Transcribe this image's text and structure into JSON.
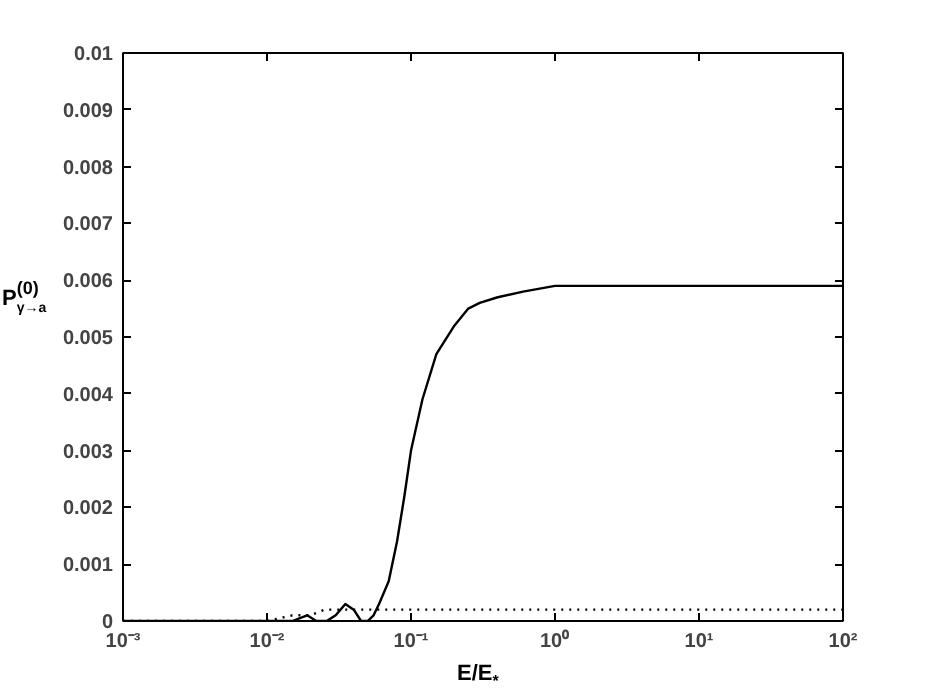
{
  "chart_data": {
    "type": "line",
    "xlabel": "E/E$_{*}$",
    "ylabel": "P$^{(0)}$$_{γ→a}$",
    "log": "x",
    "x": [
      0.001,
      0.005,
      0.01,
      0.015,
      0.019,
      0.022,
      0.026,
      0.03,
      0.035,
      0.04,
      0.045,
      0.05,
      0.055,
      0.06,
      0.07,
      0.08,
      0.09,
      0.1,
      0.12,
      0.15,
      0.2,
      0.25,
      0.3,
      0.4,
      0.6,
      1,
      2,
      10,
      100
    ],
    "series": [
      {
        "color": "#000000",
        "line_style": "solid",
        "values": [
          0,
          0,
          0,
          0,
          0.0001,
          0,
          0,
          0.0001,
          0.0003,
          0.0002,
          0,
          0,
          0.0001,
          0.0003,
          0.0007,
          0.0014,
          0.0022,
          0.003,
          0.0039,
          0.0047,
          0.0052,
          0.0055,
          0.0056,
          0.0057,
          0.0058,
          0.0059,
          0.0059,
          0.0059,
          0.0059
        ]
      },
      {
        "color": "#000000",
        "line_style": "dotted",
        "x": [
          0.001,
          0.01,
          0.015,
          0.02,
          0.025,
          0.03,
          0.05,
          0.1,
          100
        ],
        "values": [
          0,
          0,
          0.0001,
          0.0001,
          0.0002,
          0.0002,
          0.0002,
          0.0002,
          0.0002
        ]
      }
    ],
    "xlim": [
      0.001,
      100
    ],
    "xticks": [
      {
        "value": 0.001,
        "label": "10⁻³"
      },
      {
        "value": 0.01,
        "label": "10⁻²"
      },
      {
        "value": 0.1,
        "label": "10⁻¹"
      },
      {
        "value": 1,
        "label": "10⁰"
      },
      {
        "value": 10,
        "label": "10¹"
      },
      {
        "value": 100,
        "label": "10²"
      }
    ],
    "ylim": [
      0,
      0.01
    ],
    "yticks": [
      0,
      0.001,
      0.002,
      0.003,
      0.004,
      0.005,
      0.006,
      0.007,
      0.008,
      0.009,
      0.01
    ],
    "grid": false
  }
}
